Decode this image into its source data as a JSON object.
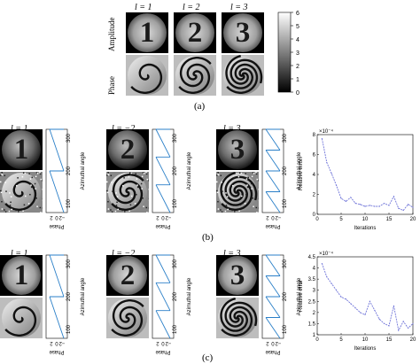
{
  "panel_a": {
    "columns": [
      "l = 1",
      "l = 2",
      "l = 3"
    ],
    "row_labels": [
      "Amplitude",
      "Phase"
    ],
    "digits": [
      "1",
      "2",
      "3"
    ],
    "colorbar_ticks": [
      "6",
      "5",
      "4",
      "3",
      "2",
      "1",
      "0"
    ],
    "label": "(a)"
  },
  "panel_b": {
    "columns": [
      "l = 1",
      "l = −2",
      "l = 3"
    ],
    "digits": [
      "1",
      "2",
      "3"
    ],
    "phase_ticks": [
      "2",
      "0",
      "−2"
    ],
    "phase_axis_label": "Phase",
    "azimuth_ticks": [
      "300",
      "200",
      "100"
    ],
    "azimuth_axis_label": "Azimuthal angle",
    "label": "(b)"
  },
  "panel_c": {
    "columns": [
      "l = 1",
      "l = −2",
      "l = 3"
    ],
    "digits": [
      "1",
      "2",
      "3"
    ],
    "phase_ticks": [
      "2",
      "0",
      "−2"
    ],
    "phase_axis_label": "Phase",
    "azimuth_ticks": [
      "300",
      "200",
      "100"
    ],
    "azimuth_axis_label": "Azimuthal angle",
    "label": "(c)"
  },
  "chart_data": [
    {
      "type": "line",
      "xlabel": "Iterations",
      "ylabel": "Relative error",
      "exponent": "×10⁻⁴",
      "xlim": [
        0,
        20
      ],
      "ylim": [
        0,
        8
      ],
      "xticks": [
        "0",
        "5",
        "10",
        "15",
        "20"
      ],
      "yticks": [
        "0",
        "2",
        "4",
        "6",
        "8"
      ],
      "x": [
        1,
        2,
        3,
        4,
        5,
        6,
        7,
        8,
        9,
        10,
        11,
        12,
        13,
        14,
        15,
        16,
        17,
        18,
        19,
        20
      ],
      "values": [
        7.6,
        5.2,
        4.1,
        2.9,
        1.6,
        1.3,
        1.7,
        1.1,
        1.0,
        0.8,
        0.9,
        0.8,
        0.8,
        1.1,
        0.9,
        1.8,
        0.6,
        0.4,
        1.0,
        0.7
      ],
      "color": "#6f74d8"
    },
    {
      "type": "line",
      "xlabel": "Iterations",
      "ylabel": "Relative error",
      "exponent": "×10⁻⁴",
      "xlim": [
        0,
        20
      ],
      "ylim": [
        1,
        4.5
      ],
      "xticks": [
        "0",
        "5",
        "10",
        "15",
        "20"
      ],
      "yticks": [
        "1",
        "1.5",
        "2",
        "2.5",
        "3",
        "3.5",
        "4",
        "4.5"
      ],
      "x": [
        1,
        2,
        3,
        4,
        5,
        6,
        7,
        8,
        9,
        10,
        11,
        12,
        13,
        14,
        15,
        16,
        17,
        18,
        19,
        20
      ],
      "values": [
        4.2,
        3.6,
        3.3,
        3.0,
        2.7,
        2.6,
        2.4,
        2.2,
        2.0,
        1.9,
        2.5,
        2.1,
        1.7,
        1.5,
        1.4,
        2.3,
        1.2,
        1.6,
        1.3,
        1.5
      ],
      "color": "#6f74d8"
    }
  ]
}
